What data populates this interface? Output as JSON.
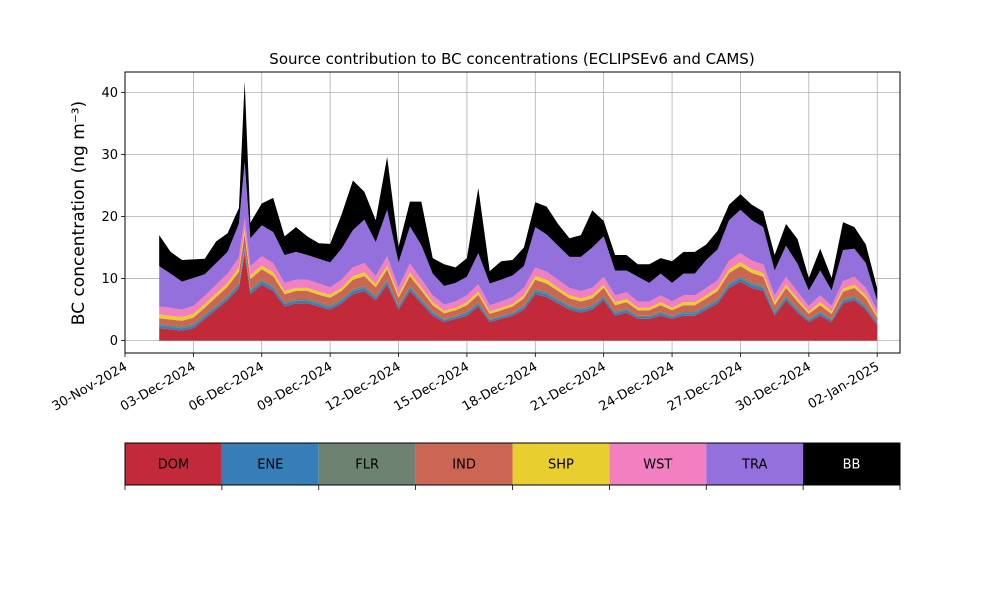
{
  "chart_data": {
    "type": "area",
    "stacked": true,
    "title": "Source contribution to BC concentrations (ECLIPSEv6 and CAMS)",
    "ylabel": "BC concentration (ng m⁻³)",
    "xlabel": "",
    "ylim": [
      -2,
      43.3
    ],
    "xlim_dates": [
      "2024-11-30T00:00",
      "2025-01-03T00:00"
    ],
    "grid": true,
    "legend_placement": "below",
    "x_tick_labels": [
      "30-Nov-2024",
      "03-Dec-2024",
      "06-Dec-2024",
      "09-Dec-2024",
      "12-Dec-2024",
      "15-Dec-2024",
      "18-Dec-2024",
      "21-Dec-2024",
      "24-Dec-2024",
      "27-Dec-2024",
      "30-Dec-2024",
      "02-Jan-2025"
    ],
    "y_ticks": [
      0,
      10,
      20,
      30,
      40
    ],
    "x": [
      "2024-12-01T12:00",
      "2024-12-02T00:00",
      "2024-12-02T12:00",
      "2024-12-03T00:00",
      "2024-12-03T12:00",
      "2024-12-04T00:00",
      "2024-12-04T12:00",
      "2024-12-05T00:00",
      "2024-12-05T06:00",
      "2024-12-05T12:00",
      "2024-12-06T00:00",
      "2024-12-06T12:00",
      "2024-12-07T00:00",
      "2024-12-07T12:00",
      "2024-12-08T00:00",
      "2024-12-08T12:00",
      "2024-12-09T00:00",
      "2024-12-09T12:00",
      "2024-12-10T00:00",
      "2024-12-10T12:00",
      "2024-12-11T00:00",
      "2024-12-11T12:00",
      "2024-12-12T00:00",
      "2024-12-12T12:00",
      "2024-12-13T00:00",
      "2024-12-13T12:00",
      "2024-12-14T00:00",
      "2024-12-14T12:00",
      "2024-12-15T00:00",
      "2024-12-15T12:00",
      "2024-12-16T00:00",
      "2024-12-16T12:00",
      "2024-12-17T00:00",
      "2024-12-17T12:00",
      "2024-12-18T00:00",
      "2024-12-18T12:00",
      "2024-12-19T00:00",
      "2024-12-19T12:00",
      "2024-12-20T00:00",
      "2024-12-20T12:00",
      "2024-12-21T00:00",
      "2024-12-21T12:00",
      "2024-12-22T00:00",
      "2024-12-22T12:00",
      "2024-12-23T00:00",
      "2024-12-23T12:00",
      "2024-12-24T00:00",
      "2024-12-24T12:00",
      "2024-12-25T00:00",
      "2024-12-25T12:00",
      "2024-12-26T00:00",
      "2024-12-26T12:00",
      "2024-12-27T00:00",
      "2024-12-27T12:00",
      "2024-12-28T00:00",
      "2024-12-28T12:00",
      "2024-12-29T00:00",
      "2024-12-29T12:00",
      "2024-12-30T00:00",
      "2024-12-30T12:00",
      "2024-12-31T00:00",
      "2024-12-31T12:00",
      "2025-01-01T00:00",
      "2025-01-01T12:00",
      "2025-01-02T00:00"
    ],
    "series": [
      {
        "name": "DOM",
        "color": "#c22a3a",
        "values": [
          2.0,
          1.8,
          1.6,
          2.0,
          3.5,
          5.0,
          6.5,
          8.5,
          14.0,
          7.5,
          9.0,
          8.0,
          5.5,
          6.0,
          6.0,
          5.5,
          5.0,
          6.0,
          7.5,
          8.0,
          6.5,
          9.0,
          5.0,
          8.0,
          6.0,
          4.0,
          3.0,
          3.5,
          4.0,
          5.5,
          3.0,
          3.5,
          4.0,
          5.0,
          7.5,
          7.0,
          6.0,
          5.0,
          4.5,
          5.0,
          6.5,
          4.0,
          4.5,
          3.5,
          3.5,
          4.0,
          3.5,
          4.0,
          4.0,
          5.0,
          6.0,
          8.5,
          9.5,
          8.5,
          8.0,
          4.0,
          6.5,
          4.5,
          3.0,
          4.0,
          3.0,
          6.0,
          6.5,
          5.0,
          2.5
        ]
      },
      {
        "name": "ENE",
        "color": "#377eb8",
        "values": [
          0.4,
          0.4,
          0.4,
          0.4,
          0.4,
          0.4,
          0.4,
          0.5,
          0.6,
          0.5,
          0.5,
          0.5,
          0.4,
          0.4,
          0.4,
          0.4,
          0.4,
          0.4,
          0.5,
          0.5,
          0.4,
          0.5,
          0.4,
          0.5,
          0.4,
          0.4,
          0.3,
          0.3,
          0.4,
          0.4,
          0.3,
          0.3,
          0.3,
          0.4,
          0.5,
          0.5,
          0.4,
          0.4,
          0.4,
          0.4,
          0.4,
          0.4,
          0.4,
          0.3,
          0.3,
          0.4,
          0.3,
          0.4,
          0.4,
          0.4,
          0.4,
          0.5,
          0.5,
          0.5,
          0.5,
          0.4,
          0.4,
          0.4,
          0.3,
          0.4,
          0.3,
          0.4,
          0.4,
          0.4,
          0.3
        ]
      },
      {
        "name": "FLR",
        "color": "#6d8270",
        "values": [
          0.3,
          0.3,
          0.3,
          0.3,
          0.3,
          0.3,
          0.3,
          0.3,
          0.4,
          0.3,
          0.3,
          0.3,
          0.3,
          0.3,
          0.3,
          0.3,
          0.3,
          0.3,
          0.3,
          0.3,
          0.3,
          0.3,
          0.3,
          0.3,
          0.3,
          0.3,
          0.2,
          0.2,
          0.3,
          0.3,
          0.2,
          0.2,
          0.2,
          0.3,
          0.3,
          0.3,
          0.3,
          0.3,
          0.3,
          0.3,
          0.3,
          0.3,
          0.3,
          0.2,
          0.2,
          0.3,
          0.2,
          0.3,
          0.3,
          0.3,
          0.3,
          0.3,
          0.3,
          0.3,
          0.3,
          0.3,
          0.3,
          0.3,
          0.2,
          0.3,
          0.2,
          0.3,
          0.3,
          0.3,
          0.2
        ]
      },
      {
        "name": "IND",
        "color": "#cc6654",
        "values": [
          0.9,
          0.9,
          0.9,
          1.0,
          1.1,
          1.3,
          1.5,
          1.8,
          2.2,
          1.6,
          1.7,
          1.6,
          1.3,
          1.3,
          1.3,
          1.2,
          1.2,
          1.3,
          1.5,
          1.6,
          1.4,
          1.7,
          1.2,
          1.6,
          1.4,
          1.0,
          0.9,
          0.9,
          1.0,
          1.2,
          0.8,
          0.9,
          1.0,
          1.1,
          1.5,
          1.4,
          1.3,
          1.1,
          1.1,
          1.1,
          1.3,
          1.0,
          1.0,
          0.9,
          0.9,
          1.0,
          0.9,
          1.0,
          1.0,
          1.1,
          1.3,
          1.6,
          1.7,
          1.6,
          1.5,
          1.0,
          1.3,
          1.1,
          0.8,
          1.0,
          0.8,
          1.2,
          1.3,
          1.1,
          0.7
        ]
      },
      {
        "name": "SHP",
        "color": "#e8cf2f",
        "values": [
          0.6,
          0.6,
          0.6,
          0.6,
          0.6,
          0.6,
          0.6,
          0.7,
          0.8,
          0.6,
          0.6,
          0.6,
          0.5,
          0.5,
          0.5,
          0.5,
          0.5,
          0.5,
          0.6,
          0.6,
          0.5,
          0.6,
          0.5,
          0.6,
          0.5,
          0.5,
          0.4,
          0.4,
          0.5,
          0.5,
          0.4,
          0.4,
          0.4,
          0.5,
          0.6,
          0.6,
          0.5,
          0.5,
          0.5,
          0.5,
          0.5,
          0.5,
          0.5,
          0.4,
          0.4,
          0.5,
          0.4,
          0.5,
          0.5,
          0.5,
          0.5,
          0.6,
          0.6,
          0.6,
          0.6,
          0.5,
          0.5,
          0.5,
          0.4,
          0.5,
          0.4,
          0.5,
          0.5,
          0.5,
          0.4
        ]
      },
      {
        "name": "WST",
        "color": "#f27fbf",
        "values": [
          1.3,
          1.3,
          1.2,
          1.3,
          1.3,
          1.4,
          1.5,
          1.6,
          1.8,
          1.5,
          1.5,
          1.5,
          1.3,
          1.3,
          1.3,
          1.3,
          1.2,
          1.3,
          1.4,
          1.5,
          1.3,
          1.5,
          1.2,
          1.4,
          1.3,
          1.1,
          1.0,
          1.0,
          1.1,
          1.2,
          1.0,
          1.0,
          1.1,
          1.2,
          1.4,
          1.3,
          1.3,
          1.2,
          1.2,
          1.2,
          1.3,
          1.1,
          1.1,
          1.0,
          1.0,
          1.1,
          1.0,
          1.1,
          1.1,
          1.2,
          1.2,
          1.4,
          1.5,
          1.4,
          1.4,
          1.1,
          1.3,
          1.1,
          0.9,
          1.1,
          0.9,
          1.2,
          1.3,
          1.2,
          0.8
        ]
      },
      {
        "name": "TRA",
        "color": "#9470dc",
        "values": [
          6.5,
          5.5,
          4.5,
          4.5,
          3.5,
          3.5,
          3.5,
          5.5,
          9.0,
          4.5,
          5.0,
          5.0,
          4.5,
          4.5,
          4.0,
          4.0,
          4.0,
          5.0,
          6.0,
          7.0,
          5.5,
          7.5,
          4.0,
          6.0,
          5.5,
          3.5,
          3.0,
          3.0,
          3.0,
          5.0,
          3.5,
          3.5,
          3.5,
          3.5,
          6.5,
          6.0,
          5.5,
          5.0,
          5.5,
          6.5,
          6.5,
          4.0,
          3.5,
          4.0,
          3.0,
          3.5,
          3.0,
          3.5,
          3.5,
          4.5,
          5.0,
          6.5,
          7.0,
          6.5,
          6.0,
          4.0,
          5.0,
          4.5,
          2.5,
          4.0,
          2.5,
          5.0,
          4.5,
          4.0,
          1.5
        ]
      },
      {
        "name": "BB",
        "color": "#000000",
        "values": [
          5.0,
          3.5,
          3.5,
          3.0,
          2.5,
          3.5,
          3.0,
          2.5,
          13.0,
          2.5,
          3.5,
          5.5,
          3.0,
          4.0,
          3.0,
          2.5,
          3.0,
          5.5,
          8.0,
          4.5,
          3.5,
          8.5,
          2.5,
          4.0,
          7.0,
          2.5,
          3.5,
          2.5,
          3.0,
          10.5,
          2.0,
          3.0,
          2.5,
          3.0,
          4.0,
          4.5,
          3.5,
          3.0,
          3.5,
          6.0,
          2.5,
          2.5,
          2.5,
          2.0,
          3.0,
          2.5,
          3.5,
          3.5,
          3.5,
          2.5,
          3.0,
          2.5,
          2.5,
          2.5,
          2.5,
          2.5,
          3.5,
          4.0,
          2.0,
          3.5,
          2.0,
          4.5,
          3.5,
          3.0,
          2.0
        ]
      }
    ]
  },
  "legend": [
    {
      "label": "DOM",
      "color": "#c22a3a",
      "text_color": "#000000"
    },
    {
      "label": "ENE",
      "color": "#377eb8",
      "text_color": "#000000"
    },
    {
      "label": "FLR",
      "color": "#6d8270",
      "text_color": "#000000"
    },
    {
      "label": "IND",
      "color": "#cc6654",
      "text_color": "#000000"
    },
    {
      "label": "SHP",
      "color": "#e8cf2f",
      "text_color": "#000000"
    },
    {
      "label": "WST",
      "color": "#f27fbf",
      "text_color": "#000000"
    },
    {
      "label": "TRA",
      "color": "#9470dc",
      "text_color": "#000000"
    },
    {
      "label": "BB",
      "color": "#000000",
      "text_color": "#ffffff"
    }
  ]
}
